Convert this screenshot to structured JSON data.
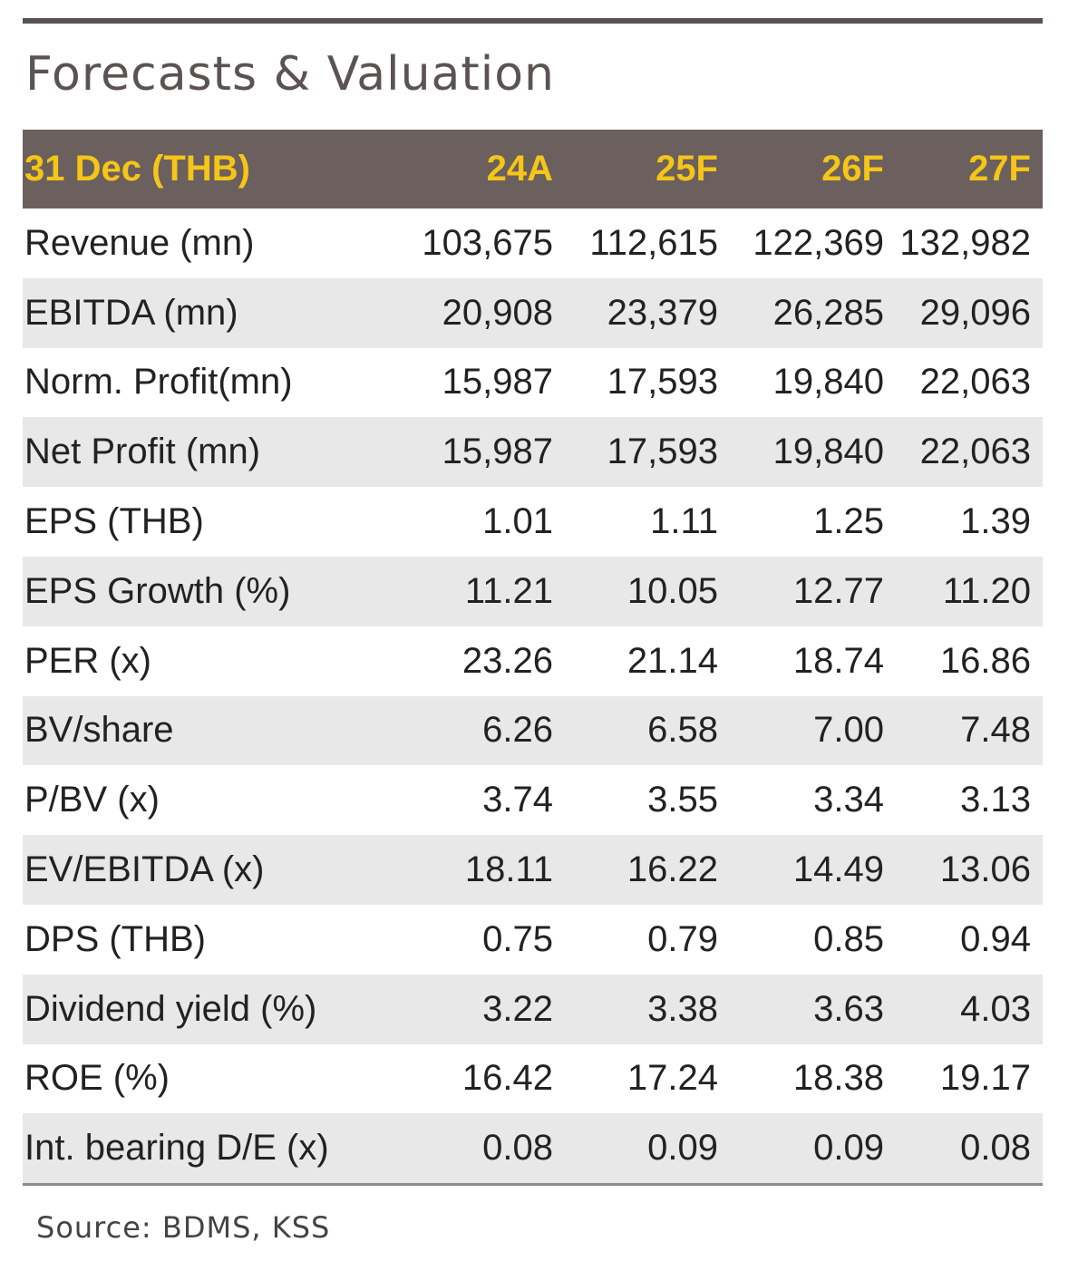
{
  "title": "Forecasts & Valuation",
  "header": [
    "31 Dec (THB)",
    "24A",
    "25F",
    "26F",
    "27F"
  ],
  "rows": [
    [
      "Revenue (mn)",
      "103,675",
      "112,615",
      "122,369",
      "132,982"
    ],
    [
      "EBITDA (mn)",
      "20,908",
      "23,379",
      "26,285",
      "29,096"
    ],
    [
      "Norm. Profit(mn)",
      "15,987",
      "17,593",
      "19,840",
      "22,063"
    ],
    [
      "Net Profit (mn)",
      "15,987",
      "17,593",
      "19,840",
      "22,063"
    ],
    [
      "EPS (THB)",
      "1.01",
      "1.11",
      "1.25",
      "1.39"
    ],
    [
      "EPS Growth (%)",
      "11.21",
      "10.05",
      "12.77",
      "11.20"
    ],
    [
      "PER (x)",
      "23.26",
      "21.14",
      "18.74",
      "16.86"
    ],
    [
      "BV/share",
      "6.26",
      "6.58",
      "7.00",
      "7.48"
    ],
    [
      "P/BV (x)",
      "3.74",
      "3.55",
      "3.34",
      "3.13"
    ],
    [
      "EV/EBITDA (x)",
      "18.11",
      "16.22",
      "14.49",
      "13.06"
    ],
    [
      "DPS (THB)",
      "0.75",
      "0.79",
      "0.85",
      "0.94"
    ],
    [
      "Dividend yield (%)",
      "3.22",
      "3.38",
      "3.63",
      "4.03"
    ],
    [
      "ROE (%)",
      "16.42",
      "17.24",
      "18.38",
      "19.17"
    ],
    [
      "Int. bearing D/E (x)",
      "0.08",
      "0.09",
      "0.09",
      "0.08"
    ]
  ],
  "source": "Source: BDMS, KSS",
  "colors": {
    "header_bg": "#6b605d",
    "header_text": "#f5c518",
    "alt_row": "#e8e8e8",
    "title": "#5b5352"
  }
}
